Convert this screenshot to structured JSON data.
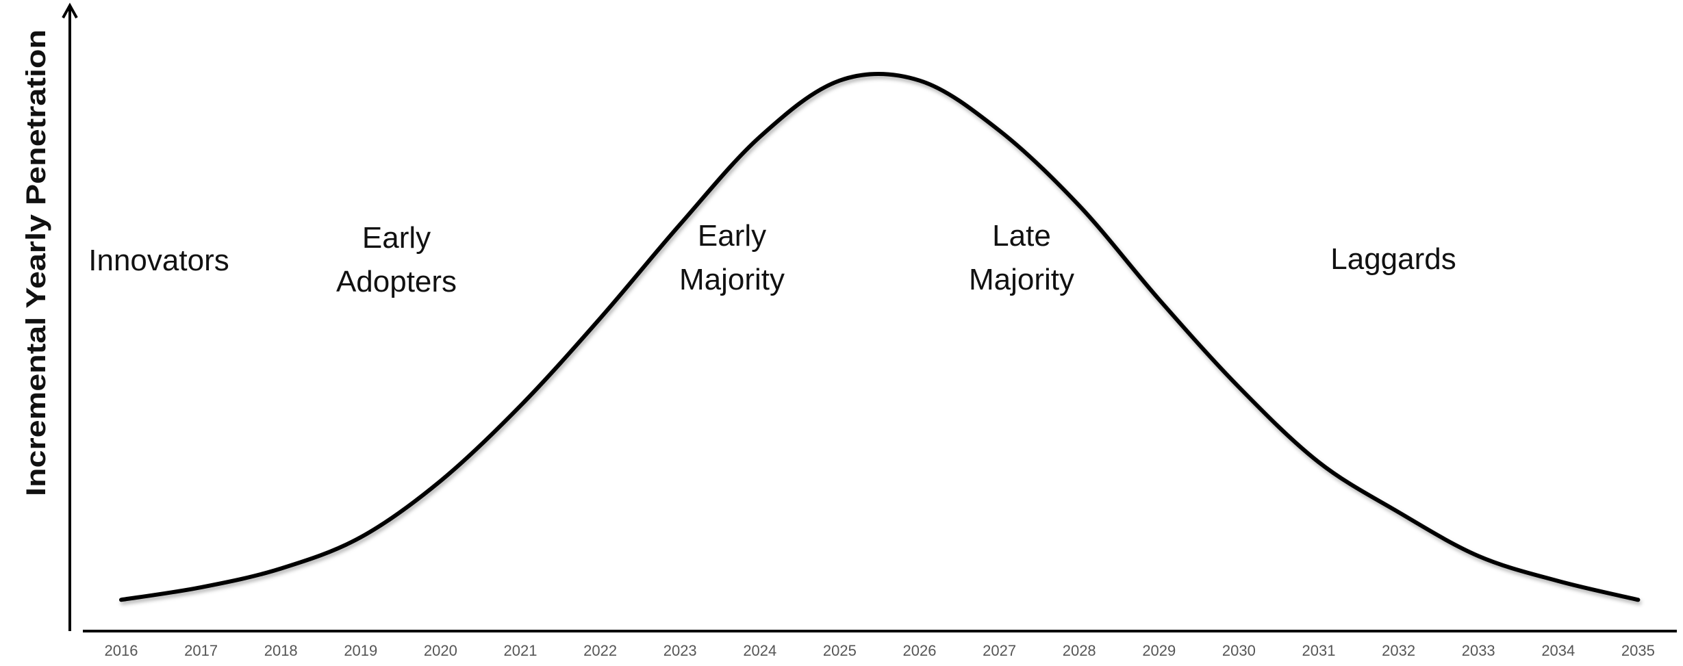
{
  "chart_data": {
    "type": "line",
    "y_label": "Incremental Yearly Penetration",
    "categories": [
      "2016",
      "2017",
      "2018",
      "2019",
      "2020",
      "2021",
      "2022",
      "2023",
      "2024",
      "2025",
      "2026",
      "2027",
      "2028",
      "2029",
      "2030",
      "2031",
      "2032",
      "2033",
      "2034",
      "2035"
    ],
    "values": [
      5,
      7,
      10,
      15,
      24,
      36,
      50,
      65,
      79,
      88,
      88,
      80,
      68,
      53,
      39,
      27,
      19,
      12,
      8,
      5
    ],
    "color": "#000000",
    "ylim": [
      0,
      100
    ],
    "annotations": [
      [
        "Innovators"
      ],
      [
        "Early",
        "Adopters"
      ],
      [
        "Early",
        "Majority"
      ],
      [
        "Late",
        "Majority"
      ],
      [
        "Laggards"
      ]
    ]
  }
}
